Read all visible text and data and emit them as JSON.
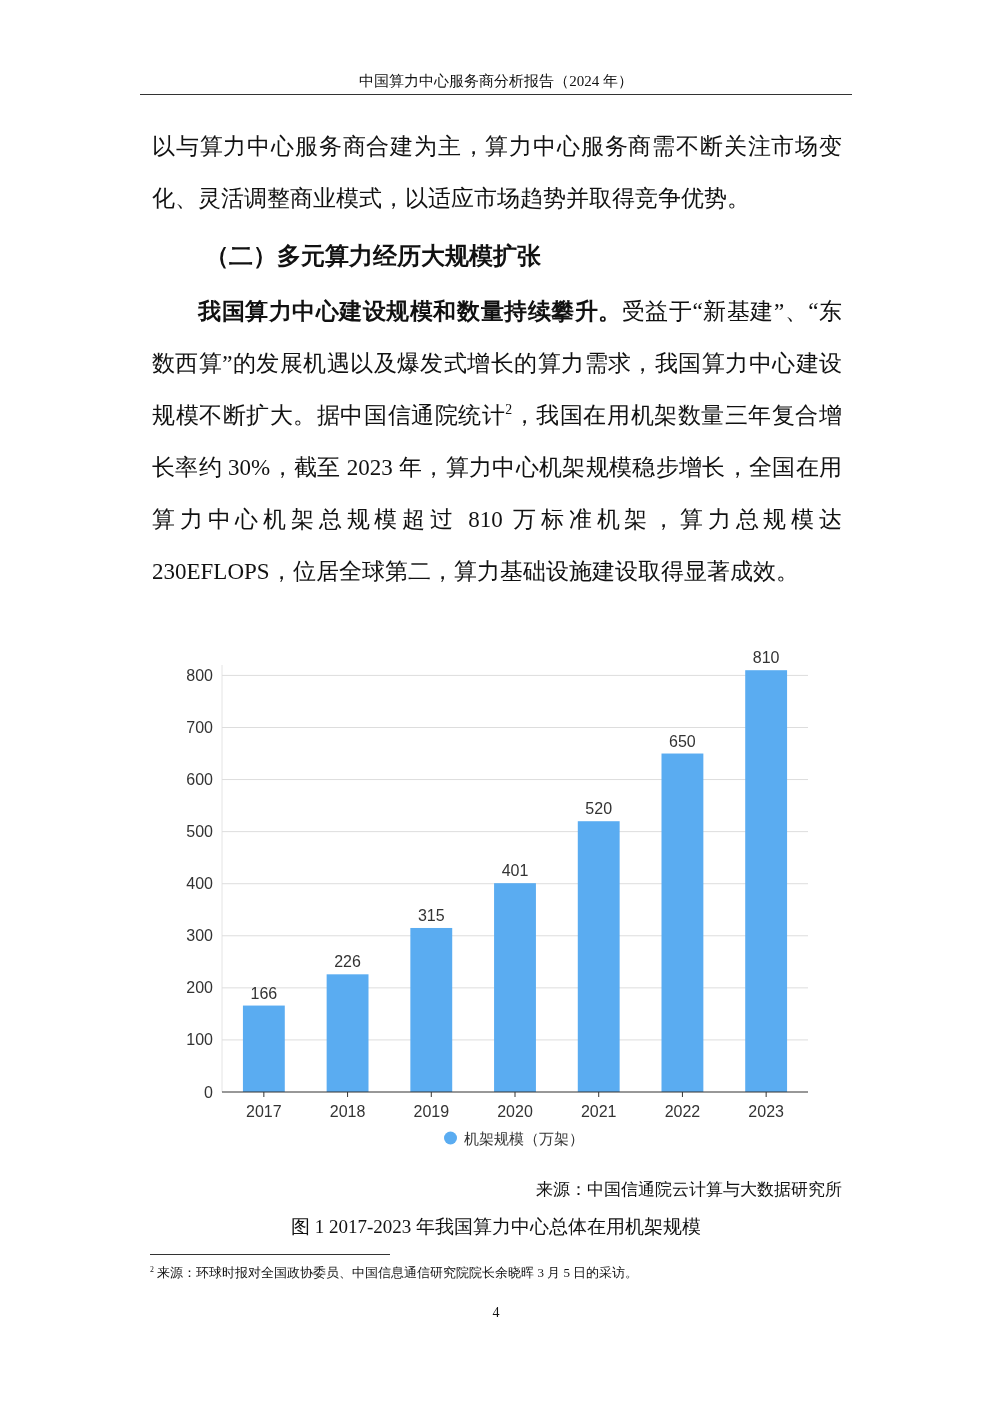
{
  "chart_data": {
    "type": "bar",
    "title": "图 1 2017-2023 年我国算力中心总体在用机架规模",
    "categories": [
      "2017",
      "2018",
      "2019",
      "2020",
      "2021",
      "2022",
      "2023"
    ],
    "series": [
      {
        "name": "机架规模（万架）",
        "color": "#5aacf1",
        "values": [
          166,
          226,
          315,
          401,
          520,
          650,
          810
        ]
      }
    ],
    "ylim": [
      0,
      820
    ],
    "yticks": [
      0,
      100,
      200,
      300,
      400,
      500,
      600,
      700,
      800
    ],
    "grid": "y",
    "legend": "bottom",
    "data_labels": true,
    "annotations": [
      "中国算力中心服务商分析报告（2024 年）",
      "以与算力中心服务商合建为主，算力中心服务商需不断关注市场变化、灵活调整商业模式，以适应市场趋势并取得竞争优势。",
      "（二）多元算力经历大规模扩张",
      "**我国算力中心建设规模和数量持续攀升。**受益于“新基建”、“东数西算”的发展机遇以及爆发式增长的算力需求，我国算力中心建设规模不断扩大。据中国信通院统计$^{2}$，我国在用机架数量三年复合增长率约 30%，截至 2023 年，算力中心机架规模稳步增长，全国在用算力中心机架总规模超过 810 万标准机架，算力总规模达 230EFLOPS，位居全球第二，算力基础设施建设取得显著成效。",
      "来源：中国信通院云计算与大数据研究所",
      "$^{2}$ 来源：环球时报对全国政协委员、中国信息通信研究院院长余晓晖 3 月 5 日的采访。",
      "4"
    ]
  }
}
